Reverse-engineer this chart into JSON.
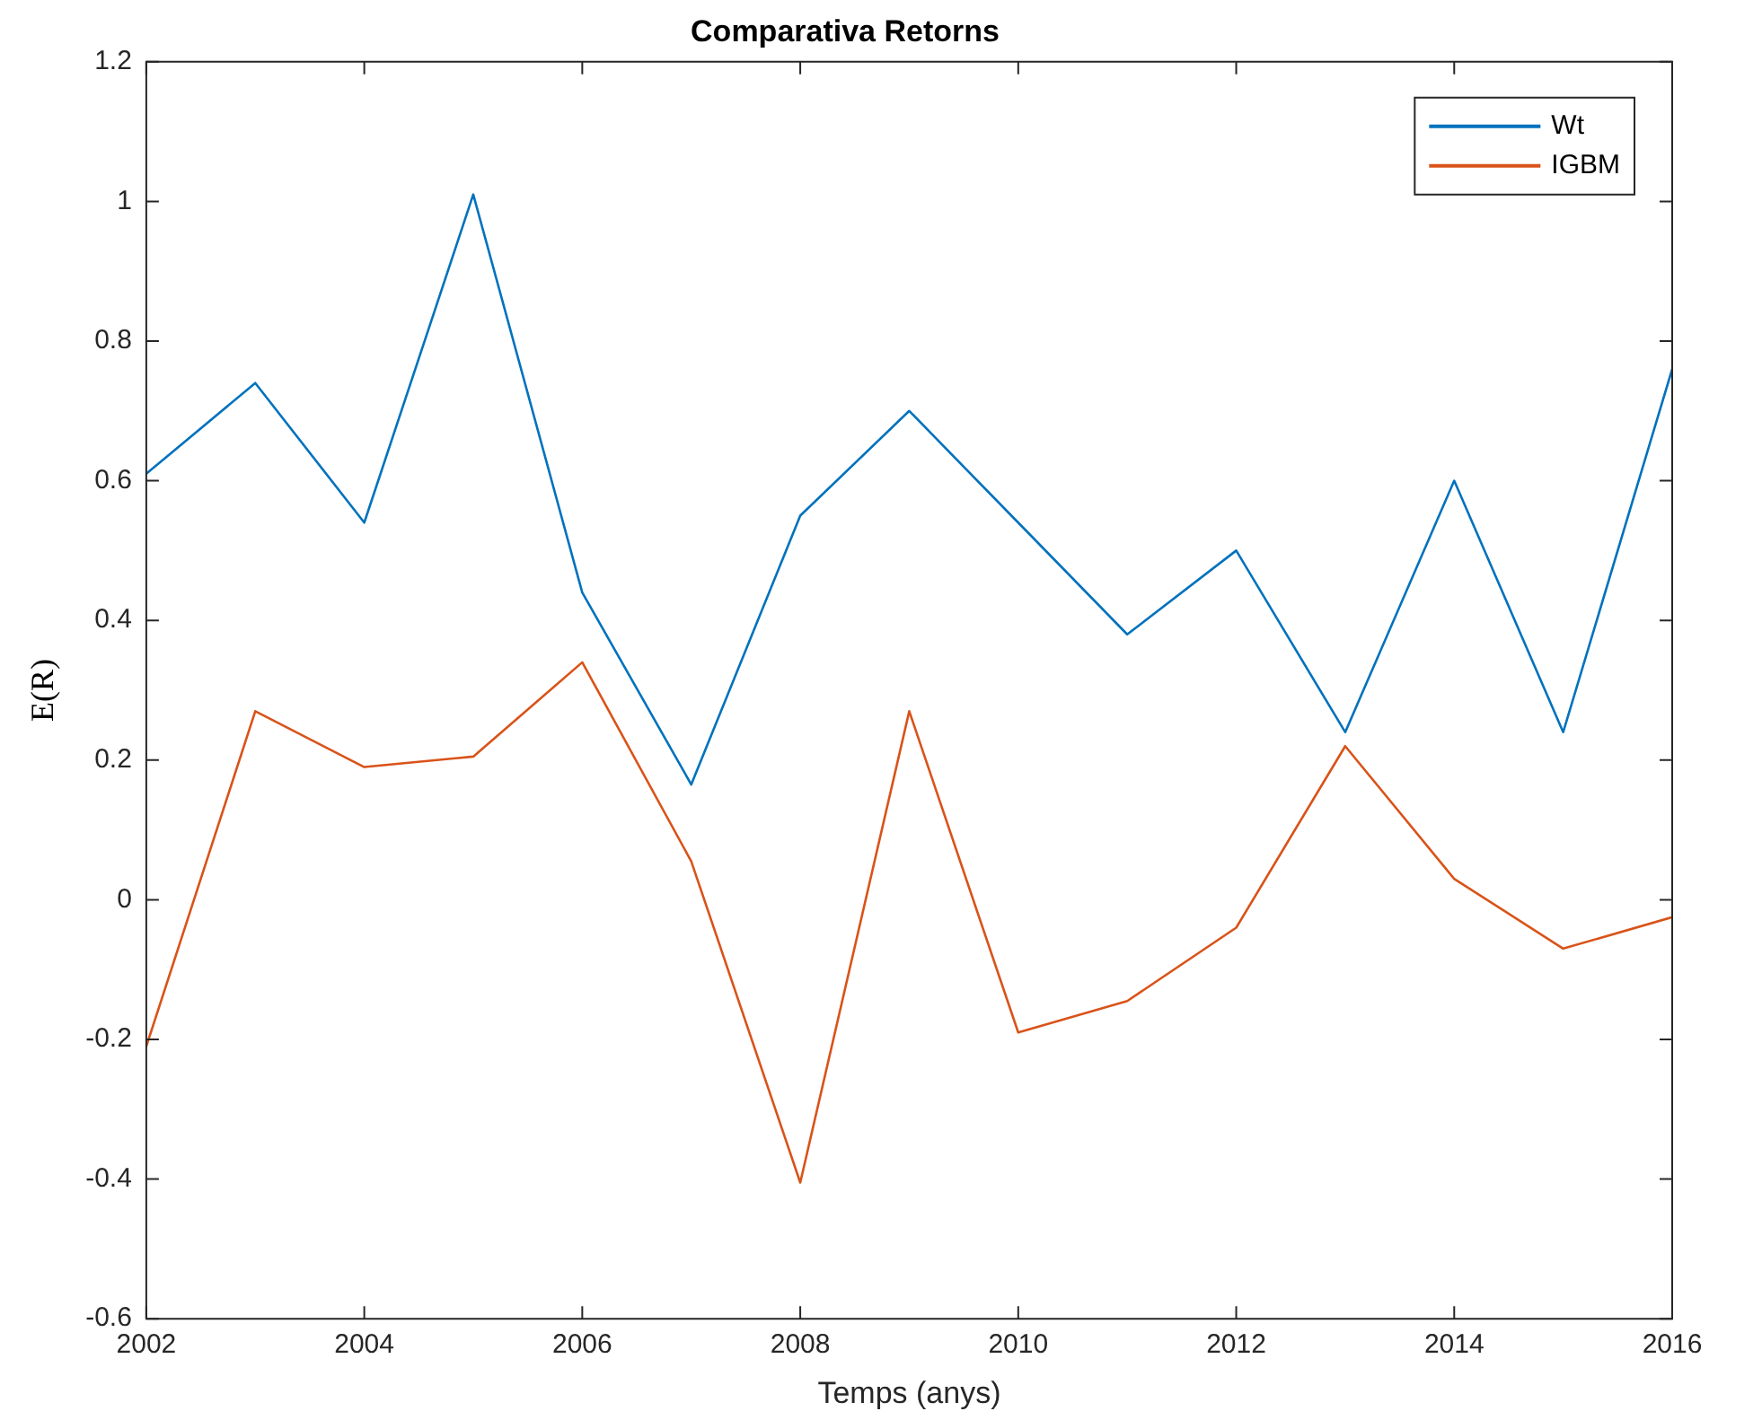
{
  "chart_data": {
    "type": "line",
    "title": "Comparativa Retorns",
    "xlabel": "Temps (anys)",
    "ylabel": "E(R)",
    "x": [
      2002,
      2003,
      2004,
      2005,
      2006,
      2007,
      2008,
      2009,
      2010,
      2011,
      2012,
      2013,
      2014,
      2015,
      2016
    ],
    "series": [
      {
        "name": "Wt",
        "color": "#0072bd",
        "values": [
          0.61,
          0.74,
          0.54,
          1.01,
          0.44,
          0.165,
          0.55,
          0.7,
          0.54,
          0.38,
          0.5,
          0.24,
          0.6,
          0.24,
          0.76
        ]
      },
      {
        "name": "IGBM",
        "color": "#d95319",
        "values": [
          -0.21,
          0.27,
          0.19,
          0.205,
          0.34,
          0.055,
          -0.405,
          0.27,
          -0.19,
          -0.145,
          -0.04,
          0.22,
          0.03,
          -0.07,
          -0.025
        ]
      }
    ],
    "xlim": [
      2002,
      2016
    ],
    "xticks": [
      2002,
      2004,
      2006,
      2008,
      2010,
      2012,
      2014,
      2016
    ],
    "ylim": [
      -0.6,
      1.2
    ],
    "yticks": [
      -0.6,
      -0.4,
      -0.2,
      0,
      0.2,
      0.4,
      0.6,
      0.8,
      1,
      1.2
    ],
    "grid": false,
    "legend": "top right",
    "marker": "none",
    "line_style": "solid"
  }
}
